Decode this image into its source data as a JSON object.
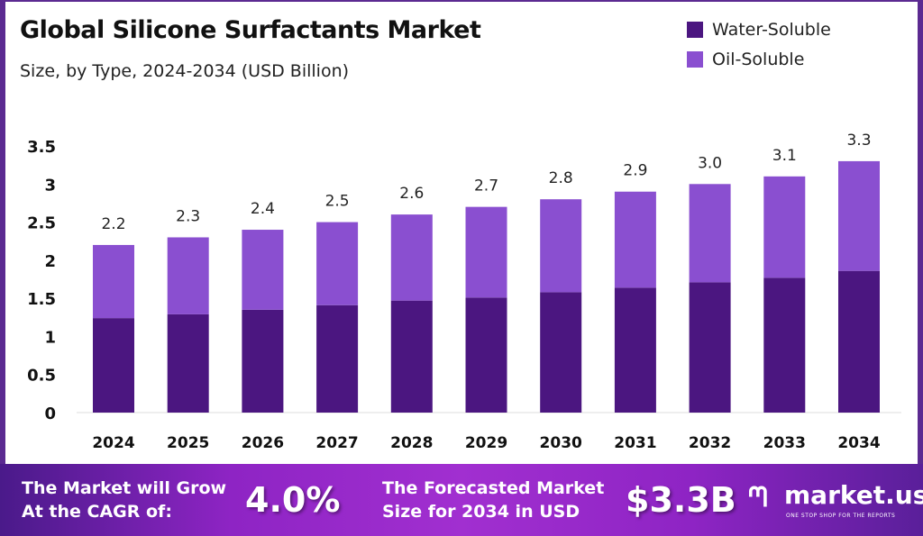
{
  "chart_data": {
    "type": "stacked-bar",
    "title": "Global Silicone Surfactants Market",
    "subtitle": "Size, by Type, 2024-2034 (USD Billion)",
    "categories": [
      "2024",
      "2025",
      "2026",
      "2027",
      "2028",
      "2029",
      "2030",
      "2031",
      "2032",
      "2033",
      "2034"
    ],
    "series": [
      {
        "name": "Water-Soluble",
        "color": "#4b1680",
        "values": [
          1.24,
          1.29,
          1.35,
          1.41,
          1.47,
          1.51,
          1.58,
          1.64,
          1.71,
          1.77,
          1.86
        ]
      },
      {
        "name": "Oil-Soluble",
        "color": "#8a4fd0",
        "values": [
          0.96,
          1.01,
          1.05,
          1.09,
          1.13,
          1.19,
          1.22,
          1.26,
          1.29,
          1.33,
          1.44
        ]
      }
    ],
    "totals": [
      "2.2",
      "2.3",
      "2.4",
      "2.5",
      "2.6",
      "2.7",
      "2.8",
      "2.9",
      "3.0",
      "3.1",
      "3.3"
    ],
    "yticks": [
      "0",
      "0.5",
      "1",
      "1.5",
      "2",
      "2.5",
      "3",
      "3.5"
    ],
    "ylim": [
      0,
      3.5
    ],
    "grid": false,
    "legend": "top-right"
  },
  "banner": {
    "cagr_text_1": "The Market will Grow",
    "cagr_text_2": "At the CAGR of:",
    "cagr_value": "4.0%",
    "forecast_text_1": "The Forecasted Market",
    "forecast_text_2": "Size for 2034 in USD",
    "forecast_value": "$3.3B",
    "logo_text": "market.us",
    "logo_tagline": "ONE STOP SHOP FOR THE REPORTS"
  }
}
